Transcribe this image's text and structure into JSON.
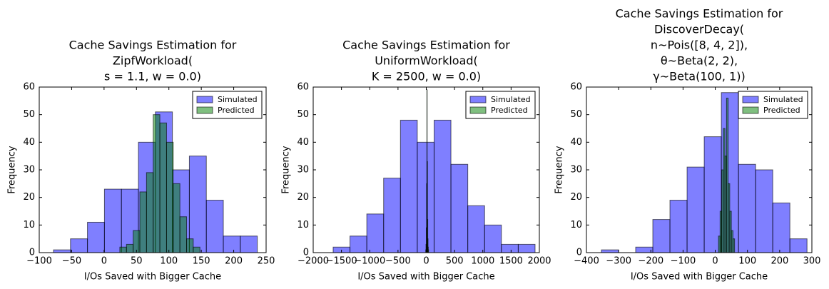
{
  "chart_data": [
    {
      "type": "histogram",
      "title": [
        "Cache Savings Estimation for",
        "ZipfWorkload(",
        "s = 1.1, w = 0.0)"
      ],
      "xlabel": "I/Os Saved with Bigger Cache",
      "ylabel": "Frequency",
      "xlim": [
        -100,
        250
      ],
      "ylim": [
        0,
        60
      ],
      "xticks": [
        {
          "value": -100,
          "label": "−100"
        },
        {
          "value": -50,
          "label": "−50"
        },
        0,
        50,
        100,
        150,
        200,
        250
      ],
      "yticks": [
        0,
        10,
        20,
        30,
        40,
        50,
        60
      ],
      "legend": "upper right",
      "series": [
        {
          "name": "Simulated",
          "color": "#0000ff",
          "opacity": 0.5,
          "bins": [
            -78,
            -51.8,
            -25.6,
            0.6,
            26.8,
            53,
            79.2,
            105.4,
            131.6,
            157.8,
            184,
            210.2,
            236.4
          ],
          "values": [
            1,
            5,
            11,
            23,
            23,
            40,
            51,
            30,
            35,
            19,
            6,
            6
          ]
        },
        {
          "name": "Predicted",
          "color": "#008000",
          "opacity": 0.5,
          "bins": [
            24.3,
            34.6,
            44.9,
            55.2,
            65.5,
            75.8,
            86.1,
            96.4,
            106.7,
            117,
            127.3,
            137.6,
            147.9
          ],
          "values": [
            2,
            3,
            8,
            22,
            29,
            50,
            47,
            40,
            25,
            13,
            5,
            2
          ]
        }
      ]
    },
    {
      "type": "histogram",
      "title": [
        "Cache Savings Estimation for",
        "UniformWorkload(",
        "K = 2500, w = 0.0)"
      ],
      "xlabel": "I/Os Saved with Bigger Cache",
      "ylabel": "Frequency",
      "xlim": [
        -2000,
        2000
      ],
      "ylim": [
        0,
        60
      ],
      "xticks": [
        {
          "value": -2000,
          "label": "−2000"
        },
        {
          "value": -1500,
          "label": "−1500"
        },
        {
          "value": -1000,
          "label": "−1000"
        },
        {
          "value": -500,
          "label": "−500"
        },
        0,
        500,
        1000,
        1500,
        2000
      ],
      "yticks": [
        0,
        10,
        20,
        30,
        40,
        50,
        60
      ],
      "legend": "upper right",
      "series": [
        {
          "name": "Simulated",
          "color": "#0000ff",
          "opacity": 0.5,
          "bins": [
            -1647,
            -1349.4,
            -1051.8,
            -754.2,
            -456.6,
            -159,
            138.6,
            436.2,
            733.8,
            1031.4,
            1329,
            1626.6,
            1924.2
          ],
          "values": [
            2,
            6,
            14,
            27,
            48,
            40,
            48,
            32,
            17,
            10,
            3,
            3
          ]
        },
        {
          "name": "Predicted",
          "color": "#008000",
          "opacity": 0.5,
          "bins": [
            -10,
            -5,
            0,
            5,
            10,
            15,
            20,
            25,
            30,
            35,
            40
          ],
          "values": [
            1,
            3,
            9,
            25,
            59,
            33,
            12,
            5,
            2,
            1
          ]
        }
      ]
    },
    {
      "type": "histogram",
      "title": [
        "Cache Savings Estimation for",
        "DiscoverDecay(",
        "n~Pois([8, 4, 2]),",
        "θ~Beta(2, 2),",
        "γ~Beta(100, 1))"
      ],
      "xlabel": "I/Os Saved with Bigger Cache",
      "ylabel": "Frequency",
      "xlim": [
        -400,
        300
      ],
      "ylim": [
        0,
        60
      ],
      "xticks": [
        {
          "value": -400,
          "label": "−400"
        },
        {
          "value": -300,
          "label": "−300"
        },
        {
          "value": -200,
          "label": "−200"
        },
        {
          "value": -100,
          "label": "−100"
        },
        0,
        100,
        200,
        300
      ],
      "yticks": [
        0,
        10,
        20,
        30,
        40,
        50,
        60
      ],
      "legend": "upper right",
      "series": [
        {
          "name": "Simulated",
          "color": "#0000ff",
          "opacity": 0.5,
          "bins": [
            -353.5,
            -300.3,
            -247.1,
            -193.9,
            -140.7,
            -87.5,
            -34.3,
            18.9,
            72.1,
            125.3,
            178.5,
            231.7,
            284.9
          ],
          "values": [
            1,
            0,
            2,
            12,
            19,
            31,
            42,
            58,
            32,
            30,
            18,
            5
          ]
        },
        {
          "name": "Predicted",
          "color": "#008000",
          "opacity": 0.5,
          "bins": [
            10,
            15,
            20,
            25,
            30,
            35,
            40,
            45,
            50,
            55,
            60
          ],
          "values": [
            6,
            15,
            30,
            45,
            35,
            56,
            25,
            15,
            8,
            5
          ]
        }
      ]
    }
  ]
}
